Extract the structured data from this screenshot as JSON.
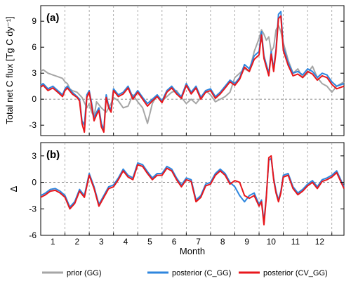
{
  "chart_data": [
    {
      "type": "line",
      "panel_label": "(a)",
      "ylabel": "Total net C flux [Tg C dy⁻¹]",
      "ylim": [
        -4.2,
        10.8
      ],
      "yticks": [
        -3,
        0,
        3,
        6,
        9
      ],
      "ytick_labels": [
        "-3",
        "0",
        "3",
        "6",
        "9"
      ],
      "zero_line": 0,
      "series": [
        {
          "name": "prior (GG)",
          "color": "#a6a6a6",
          "x": [
            0,
            0.1,
            0.3,
            0.5,
            0.7,
            0.9,
            1.0,
            1.1,
            1.2,
            1.3,
            1.5,
            1.7,
            1.9,
            2.0,
            2.1,
            2.2,
            2.3,
            2.5,
            2.7,
            2.9,
            3.0,
            3.2,
            3.4,
            3.6,
            3.8,
            4.0,
            4.2,
            4.4,
            4.6,
            4.8,
            5.0,
            5.2,
            5.4,
            5.6,
            5.8,
            6.0,
            6.2,
            6.4,
            6.6,
            6.8,
            7.0,
            7.2,
            7.4,
            7.6,
            7.8,
            8.0,
            8.2,
            8.4,
            8.6,
            8.8,
            9.0,
            9.1,
            9.2,
            9.3,
            9.4,
            9.5,
            9.6,
            9.7,
            9.8,
            9.9,
            10.0,
            10.2,
            10.4,
            10.6,
            10.8,
            11.0,
            11.2,
            11.4,
            11.6,
            11.8,
            12.0,
            12.2,
            12.5
          ],
          "y": [
            3.2,
            3.4,
            3.0,
            2.8,
            2.6,
            2.4,
            2.0,
            1.8,
            1.2,
            1.0,
            0.8,
            0.2,
            -1.0,
            -0.5,
            -1.5,
            -2.0,
            -0.3,
            -1.0,
            -1.5,
            -0.5,
            0.2,
            -0.2,
            -1.0,
            -0.8,
            0.5,
            -0.3,
            -1.0,
            -2.8,
            -0.5,
            0.5,
            -0.2,
            0.3,
            0.8,
            1.0,
            0.2,
            -0.5,
            0.0,
            -0.5,
            0.2,
            1.0,
            0.5,
            -0.3,
            0.0,
            0.3,
            0.8,
            2.5,
            3.0,
            3.5,
            3.2,
            5.5,
            7.0,
            8.0,
            7.5,
            6.8,
            7.2,
            5.5,
            6.0,
            8.0,
            8.5,
            7.8,
            6.5,
            4.5,
            3.0,
            3.5,
            2.5,
            3.0,
            3.8,
            2.5,
            1.8,
            1.5,
            0.8,
            1.5,
            2.0
          ]
        },
        {
          "name": "posterior (C_GG)",
          "color": "#2e86de",
          "x": [
            0,
            0.1,
            0.3,
            0.5,
            0.7,
            0.9,
            1.0,
            1.1,
            1.3,
            1.5,
            1.6,
            1.7,
            1.8,
            1.9,
            2.0,
            2.1,
            2.2,
            2.3,
            2.4,
            2.5,
            2.6,
            2.7,
            2.8,
            2.9,
            3.0,
            3.2,
            3.4,
            3.6,
            3.8,
            4.0,
            4.2,
            4.4,
            4.6,
            4.8,
            5.0,
            5.2,
            5.4,
            5.6,
            5.8,
            6.0,
            6.2,
            6.4,
            6.6,
            6.8,
            7.0,
            7.2,
            7.4,
            7.6,
            7.8,
            8.0,
            8.2,
            8.4,
            8.6,
            8.8,
            9.0,
            9.1,
            9.2,
            9.3,
            9.4,
            9.5,
            9.6,
            9.7,
            9.8,
            9.9,
            10.0,
            10.2,
            10.4,
            10.6,
            10.8,
            11.0,
            11.2,
            11.4,
            11.6,
            11.8,
            12.0,
            12.2,
            12.5
          ],
          "y": [
            1.6,
            1.8,
            1.2,
            1.5,
            1.0,
            0.5,
            1.2,
            1.5,
            0.8,
            0.3,
            0.0,
            -2.5,
            -3.0,
            0.5,
            1.0,
            -0.5,
            -2.2,
            -1.5,
            -1.0,
            -2.8,
            -3.5,
            0.5,
            -0.8,
            -1.2,
            1.2,
            0.5,
            0.8,
            1.5,
            0.2,
            1.0,
            0.2,
            -0.5,
            0.0,
            0.5,
            -0.2,
            1.0,
            1.5,
            0.8,
            0.3,
            1.8,
            0.8,
            1.5,
            0.2,
            1.0,
            1.2,
            0.3,
            0.8,
            1.5,
            2.2,
            1.8,
            2.5,
            4.0,
            3.5,
            5.0,
            5.5,
            7.8,
            5.0,
            4.0,
            3.0,
            5.5,
            3.5,
            5.8,
            9.8,
            10.1,
            6.0,
            4.2,
            3.0,
            3.2,
            2.8,
            3.5,
            3.2,
            2.5,
            3.0,
            2.8,
            2.0,
            1.5,
            1.8
          ]
        },
        {
          "name": "posterior (CV_GG)",
          "color": "#e8171c",
          "x": [
            0,
            0.1,
            0.3,
            0.5,
            0.7,
            0.9,
            1.0,
            1.1,
            1.3,
            1.5,
            1.6,
            1.7,
            1.8,
            1.9,
            2.0,
            2.1,
            2.2,
            2.3,
            2.4,
            2.5,
            2.6,
            2.7,
            2.8,
            2.9,
            3.0,
            3.2,
            3.4,
            3.6,
            3.8,
            4.0,
            4.2,
            4.4,
            4.6,
            4.8,
            5.0,
            5.2,
            5.4,
            5.6,
            5.8,
            6.0,
            6.2,
            6.4,
            6.6,
            6.8,
            7.0,
            7.2,
            7.4,
            7.6,
            7.8,
            8.0,
            8.2,
            8.4,
            8.6,
            8.8,
            9.0,
            9.1,
            9.2,
            9.3,
            9.4,
            9.5,
            9.6,
            9.7,
            9.8,
            9.9,
            10.0,
            10.2,
            10.4,
            10.6,
            10.8,
            11.0,
            11.2,
            11.4,
            11.6,
            11.8,
            12.0,
            12.2,
            12.5
          ],
          "y": [
            1.4,
            1.6,
            1.0,
            1.3,
            0.8,
            0.3,
            1.0,
            1.3,
            0.6,
            0.2,
            -0.2,
            -2.8,
            -3.8,
            0.2,
            0.8,
            -0.8,
            -2.5,
            -1.8,
            -1.3,
            -3.2,
            -3.8,
            0.2,
            -1.0,
            -1.5,
            1.0,
            0.3,
            0.6,
            1.3,
            0.0,
            0.8,
            0.0,
            -0.8,
            -0.2,
            0.3,
            -0.4,
            0.8,
            1.3,
            0.6,
            0.1,
            1.6,
            0.6,
            1.3,
            0.0,
            0.8,
            1.0,
            0.1,
            0.6,
            1.3,
            2.0,
            1.6,
            2.3,
            3.7,
            3.2,
            4.6,
            5.1,
            7.4,
            4.7,
            3.7,
            2.7,
            5.2,
            3.2,
            5.5,
            9.3,
            9.6,
            5.6,
            3.9,
            2.7,
            2.9,
            2.5,
            3.2,
            2.9,
            2.2,
            2.7,
            2.5,
            1.7,
            1.2,
            1.5
          ]
        }
      ]
    },
    {
      "type": "line",
      "panel_label": "(b)",
      "ylabel": "Δ",
      "xlabel": "Month",
      "ylim": [
        -6,
        4.5
      ],
      "yticks": [
        -6,
        -3,
        0,
        3
      ],
      "ytick_labels": [
        "-6",
        "-3",
        "0",
        "3"
      ],
      "zero_line": 0,
      "series": [
        {
          "name": "posterior (C_GG)",
          "color": "#2e86de",
          "x": [
            0,
            0.2,
            0.4,
            0.6,
            0.8,
            1.0,
            1.2,
            1.4,
            1.6,
            1.8,
            2.0,
            2.2,
            2.4,
            2.6,
            2.8,
            3.0,
            3.2,
            3.4,
            3.6,
            3.8,
            4.0,
            4.2,
            4.4,
            4.6,
            4.8,
            5.0,
            5.2,
            5.4,
            5.6,
            5.8,
            6.0,
            6.2,
            6.4,
            6.6,
            6.8,
            7.0,
            7.2,
            7.4,
            7.6,
            7.8,
            8.0,
            8.2,
            8.4,
            8.6,
            8.8,
            9.0,
            9.1,
            9.2,
            9.3,
            9.4,
            9.5,
            9.6,
            9.7,
            9.8,
            9.9,
            10.0,
            10.2,
            10.4,
            10.6,
            10.8,
            11.0,
            11.2,
            11.4,
            11.6,
            11.8,
            12.0,
            12.2,
            12.5
          ],
          "y": [
            -1.5,
            -1.2,
            -0.8,
            -0.7,
            -1.0,
            -1.5,
            -2.8,
            -2.2,
            -0.8,
            -1.5,
            1.0,
            -0.5,
            -2.5,
            -1.5,
            -0.5,
            -0.3,
            0.5,
            1.5,
            0.8,
            0.5,
            2.2,
            2.0,
            1.2,
            0.5,
            1.0,
            1.0,
            1.8,
            1.5,
            0.5,
            -0.3,
            0.5,
            0.3,
            -2.0,
            -1.5,
            -0.2,
            0.0,
            1.0,
            1.5,
            1.0,
            0.0,
            -0.5,
            -1.5,
            -2.2,
            -1.5,
            -1.2,
            -2.5,
            -2.0,
            -4.5,
            -1.5,
            2.5,
            2.7,
            0.5,
            -1.0,
            -2.0,
            -1.0,
            0.8,
            1.0,
            -0.5,
            -1.2,
            -0.8,
            -0.2,
            0.2,
            -0.5,
            0.3,
            0.5,
            0.8,
            1.3,
            -0.5
          ]
        },
        {
          "name": "posterior (CV_GG)",
          "color": "#e8171c",
          "x": [
            0,
            0.2,
            0.4,
            0.6,
            0.8,
            1.0,
            1.2,
            1.4,
            1.6,
            1.8,
            2.0,
            2.2,
            2.4,
            2.6,
            2.8,
            3.0,
            3.2,
            3.4,
            3.6,
            3.8,
            4.0,
            4.2,
            4.4,
            4.6,
            4.8,
            5.0,
            5.2,
            5.4,
            5.6,
            5.8,
            6.0,
            6.2,
            6.4,
            6.6,
            6.8,
            7.0,
            7.2,
            7.4,
            7.6,
            7.8,
            8.0,
            8.2,
            8.4,
            8.6,
            8.8,
            9.0,
            9.1,
            9.2,
            9.3,
            9.4,
            9.5,
            9.6,
            9.7,
            9.8,
            9.9,
            10.0,
            10.2,
            10.4,
            10.6,
            10.8,
            11.0,
            11.2,
            11.4,
            11.6,
            11.8,
            12.0,
            12.2,
            12.5
          ],
          "y": [
            -1.7,
            -1.4,
            -1.0,
            -0.9,
            -1.2,
            -1.7,
            -3.0,
            -2.4,
            -1.0,
            -1.7,
            0.8,
            -0.7,
            -2.7,
            -1.7,
            -0.7,
            -0.5,
            0.3,
            1.3,
            0.6,
            0.3,
            2.0,
            1.8,
            1.0,
            0.3,
            0.8,
            0.8,
            1.6,
            1.3,
            0.3,
            -0.5,
            0.3,
            0.1,
            -2.2,
            -1.7,
            -0.4,
            -0.2,
            0.8,
            1.3,
            0.8,
            -0.2,
            0.2,
            0.0,
            -1.5,
            -1.8,
            -1.5,
            -2.7,
            -2.2,
            -4.8,
            -1.7,
            2.8,
            3.0,
            0.3,
            -1.2,
            -2.2,
            -1.2,
            0.6,
            0.8,
            -0.7,
            -1.4,
            -1.0,
            -0.4,
            0.0,
            -0.7,
            0.1,
            0.3,
            0.6,
            1.1,
            -0.7
          ]
        }
      ]
    }
  ],
  "x_axis": {
    "xlim": [
      0,
      12.5
    ],
    "month_labels": [
      "1",
      "2",
      "3",
      "4",
      "5",
      "6",
      "7",
      "8",
      "9",
      "10",
      "11",
      "12"
    ],
    "month_boundaries": [
      1,
      2,
      3,
      4,
      5,
      6,
      7,
      8,
      9,
      10,
      11,
      12
    ]
  },
  "legend": {
    "placement": "bottom",
    "items": [
      {
        "label": "prior (GG)",
        "color": "#a6a6a6"
      },
      {
        "label": "posterior (C_GG)",
        "color": "#2e86de"
      },
      {
        "label": "posterior (CV_GG)",
        "color": "#e8171c"
      }
    ]
  }
}
